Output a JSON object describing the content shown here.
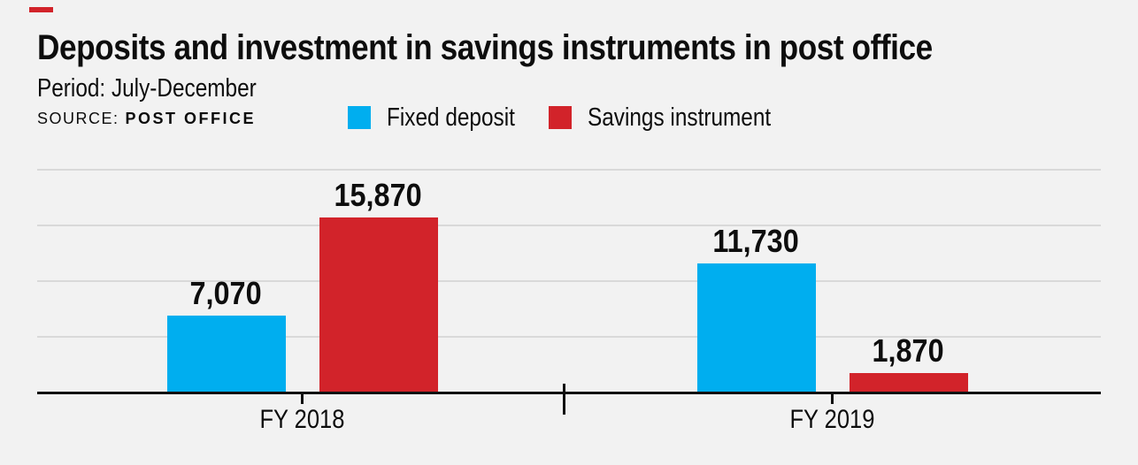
{
  "header": {
    "title": "Deposits and investment in savings instruments in post office",
    "period": "Period: July-December",
    "source_label": "SOURCE:",
    "source_value": "POST OFFICE"
  },
  "legend": {
    "items": [
      {
        "label": "Fixed deposit",
        "color": "#00aeef"
      },
      {
        "label": "Savings instrument",
        "color": "#d2232a"
      }
    ]
  },
  "colors": {
    "background": "#f2f2f2",
    "blue": "#00aeef",
    "red": "#d2232a",
    "axis": "#111111",
    "gridline": "#d9d9d9",
    "accent_dash": "#d2232a"
  },
  "chart_data": {
    "type": "bar",
    "title": "Deposits and investment in savings instruments in post office",
    "subtitle": "Period: July-December",
    "source": "POST OFFICE",
    "categories": [
      "FY 2018",
      "FY 2019"
    ],
    "series": [
      {
        "name": "Fixed deposit",
        "color": "#00aeef",
        "values": [
          7070,
          11730
        ],
        "value_labels": [
          "7,070",
          "11,730"
        ]
      },
      {
        "name": "Savings instrument",
        "color": "#d2232a",
        "values": [
          15870,
          1870
        ],
        "value_labels": [
          "15,870",
          "1,870"
        ]
      }
    ],
    "ylim": [
      0,
      22500
    ],
    "gridline_values": [
      5000,
      10000,
      15000,
      20000
    ],
    "grid": true,
    "y_axis_tick_labels_visible": false,
    "legend_position": "top"
  }
}
